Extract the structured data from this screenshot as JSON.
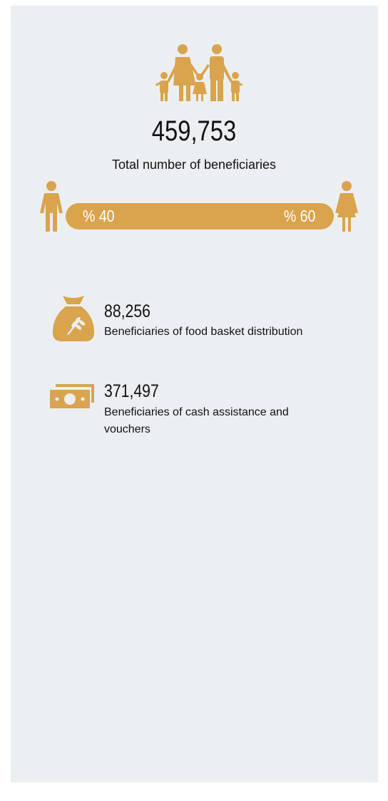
{
  "total": {
    "value": "459,753",
    "label": "Total number of beneficiaries"
  },
  "gender": {
    "male": "% 40",
    "female": "% 60"
  },
  "items": [
    {
      "value": "88,256",
      "label": "Beneficiaries of food basket distribution"
    },
    {
      "value": "371,497",
      "label": "Beneficiaries of cash assistance and vouchers"
    }
  ]
}
